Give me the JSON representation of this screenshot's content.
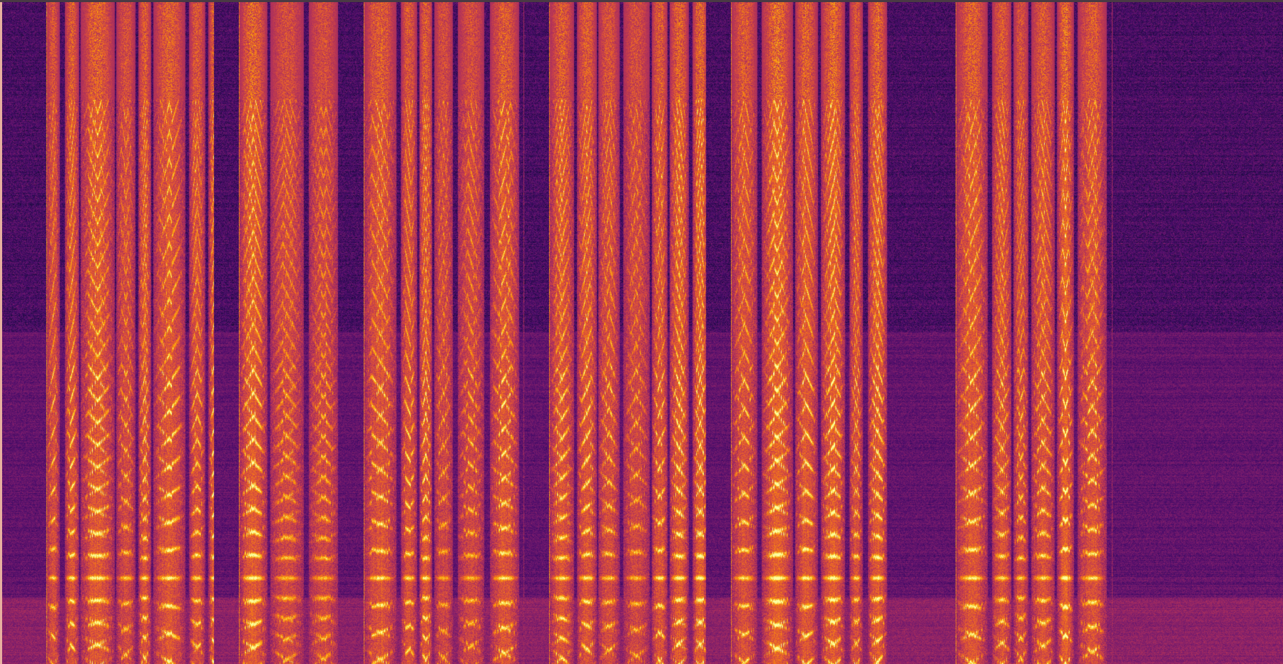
{
  "image": {
    "kind": "spectrogram",
    "colormap": "inferno",
    "colormap_stops": [
      "#000004",
      "#1b0c41",
      "#4a0c6b",
      "#781c6d",
      "#a52c60",
      "#cf4446",
      "#ed6925",
      "#fb9b06",
      "#f7d13d",
      "#fcffa4"
    ]
  }
}
